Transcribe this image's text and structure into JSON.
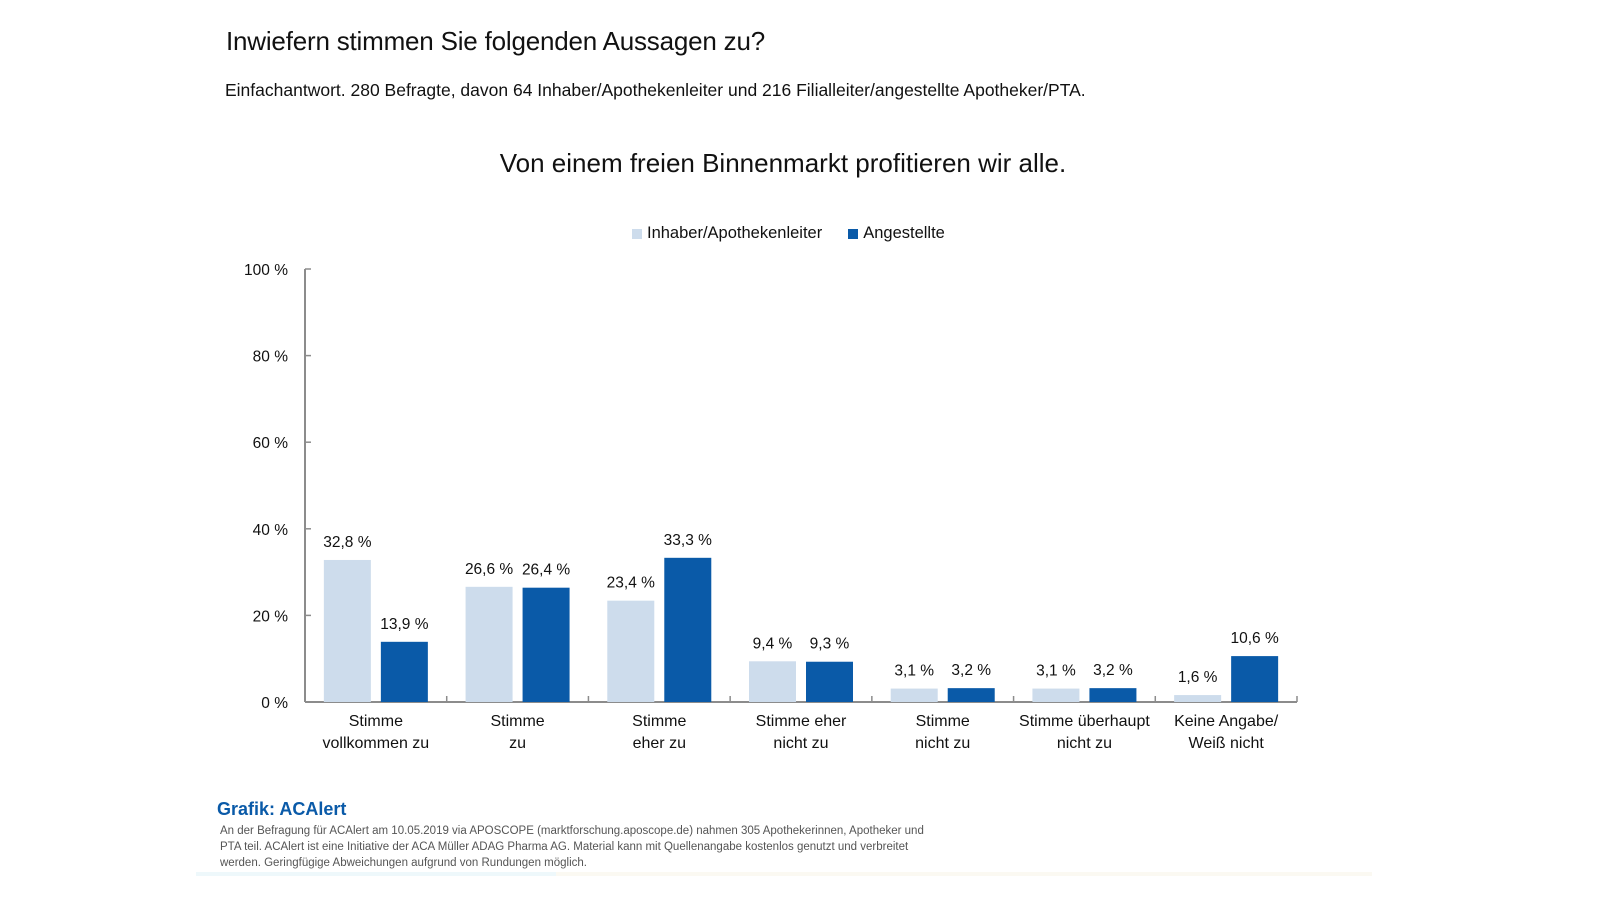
{
  "header": {
    "question": "Inwiefern stimmen Sie folgenden Aussagen zu?",
    "subtitle": "Einfachantwort. 280 Befragte, davon 64 Inhaber/Apothekenleiter und 216 Filialleiter/angestellte Apotheker/PTA."
  },
  "colors": {
    "inhaber": "#cddcec",
    "angestellte": "#0a5aa8",
    "axis": "#8c8c8c",
    "source_title": "#0a5aa8"
  },
  "chart_data": {
    "type": "bar",
    "title": "Von einem freien Binnenmarkt profitieren wir alle.",
    "xlabel": "",
    "ylabel": "",
    "ylim": [
      0,
      100
    ],
    "yticks": [
      0,
      20,
      40,
      60,
      80,
      100
    ],
    "ytick_labels": [
      "0 %",
      "20 %",
      "40 %",
      "60 %",
      "80 %",
      "100 %"
    ],
    "grid": false,
    "legend_position": "top-center",
    "categories": [
      [
        "Stimme",
        "vollkommen zu"
      ],
      [
        "Stimme",
        "zu"
      ],
      [
        "Stimme",
        "eher zu"
      ],
      [
        "Stimme eher",
        "nicht zu"
      ],
      [
        "Stimme",
        "nicht zu"
      ],
      [
        "Stimme überhaupt",
        "nicht zu"
      ],
      [
        "Keine Angabe/",
        "Weiß nicht"
      ]
    ],
    "series": [
      {
        "name": "Inhaber/Apothekenleiter",
        "values": [
          32.8,
          26.6,
          23.4,
          9.4,
          3.1,
          3.1,
          1.6
        ],
        "labels": [
          "32,8 %",
          "26,6 %",
          "23,4 %",
          "9,4 %",
          "3,1 %",
          "3,1 %",
          "1,6 %"
        ]
      },
      {
        "name": "Angestellte",
        "values": [
          13.9,
          26.4,
          33.3,
          9.3,
          3.2,
          3.2,
          10.6
        ],
        "labels": [
          "13,9 %",
          "26,4 %",
          "33,3 %",
          "9,3 %",
          "3,2 %",
          "3,2 %",
          "10,6 %"
        ]
      }
    ]
  },
  "source": {
    "title": "Grafik: ACAlert",
    "text": "An der Befragung für ACAlert am 10.05.2019 via APOSCOPE (marktforschung.aposcope.de) nahmen 305 Apothekerinnen, Apotheker und PTA teil. ACAlert ist eine Initiative der ACA Müller ADAG Pharma AG. Material kann mit Quellenangabe kostenlos genutzt und verbreitet werden. Geringfügige Abweichungen aufgrund von Rundungen möglich."
  }
}
